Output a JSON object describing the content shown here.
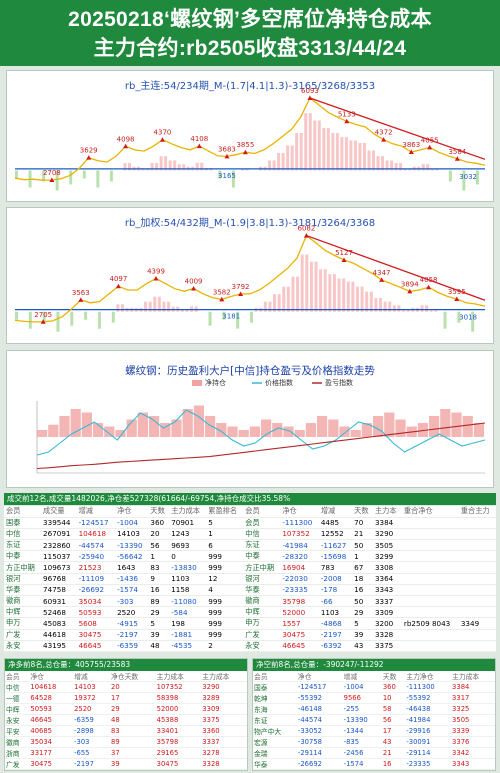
{
  "header": {
    "line1": "20250218‘螺纹钢’多空席位净持仓成本",
    "line2": "主力合约:rb2505收盘3313/44/24"
  },
  "chart_data": [
    {
      "type": "line",
      "title": "rb_主连:54/234期_M-(1.7|4.1|1.3)-3165/3268/3353",
      "colors": {
        "price": "#e8b400",
        "trend": "#d0191c",
        "hline": "#1a58c9",
        "bars_pos": "#f3a0a0",
        "bars_neg": "#9ad48a"
      },
      "price": [
        2780,
        2720,
        2740,
        2700,
        2708,
        2760,
        2900,
        3200,
        3629,
        3500,
        3450,
        3700,
        4098,
        3950,
        3900,
        4100,
        4370,
        4200,
        4050,
        3950,
        4108,
        3900,
        3700,
        3683,
        3750,
        3855,
        3800,
        3950,
        4200,
        4500,
        4800,
        5300,
        6093,
        5800,
        5500,
        5300,
        5133,
        5000,
        4900,
        4600,
        4372,
        4200,
        4100,
        3863,
        3950,
        4055,
        3850,
        3700,
        3584,
        3450,
        3400,
        3313
      ],
      "labels": [
        {
          "i": 4,
          "v": "2708"
        },
        {
          "i": 8,
          "v": "3629"
        },
        {
          "i": 12,
          "v": "4098"
        },
        {
          "i": 16,
          "v": "4370"
        },
        {
          "i": 20,
          "v": "4108"
        },
        {
          "i": 23,
          "v": "3683"
        },
        {
          "i": 25,
          "v": "3855"
        },
        {
          "i": 32,
          "v": "6093"
        },
        {
          "i": 36,
          "v": "5133"
        },
        {
          "i": 40,
          "v": "4372"
        },
        {
          "i": 43,
          "v": "3863"
        },
        {
          "i": 45,
          "v": "4055"
        },
        {
          "i": 48,
          "v": "3584"
        }
      ],
      "trend": {
        "from": 32,
        "to": 51
      },
      "hline": {
        "value": 3165,
        "label": "3165",
        "end_label": "3032"
      }
    },
    {
      "type": "line",
      "title": "rb_加权:54/432期_M-(1.9|3.8|1.3)-3181/3264/3368",
      "colors": {
        "price": "#e8b400",
        "trend": "#d0191c",
        "hline": "#1a58c9",
        "bars_pos": "#f3a0a0",
        "bars_neg": "#9ad48a"
      },
      "price": [
        2760,
        2720,
        2700,
        2705,
        2740,
        2900,
        3200,
        3563,
        3450,
        3500,
        3800,
        4097,
        3950,
        3950,
        4200,
        4399,
        4200,
        4000,
        3900,
        4009,
        3800,
        3650,
        3582,
        3700,
        3792,
        3800,
        3950,
        4200,
        4500,
        4800,
        5200,
        6082,
        5800,
        5500,
        5300,
        5127,
        5000,
        4800,
        4600,
        4347,
        4200,
        4050,
        3894,
        3950,
        4058,
        3850,
        3700,
        3595,
        3450,
        3400,
        3313
      ],
      "labels": [
        {
          "i": 3,
          "v": "2705"
        },
        {
          "i": 7,
          "v": "3563"
        },
        {
          "i": 11,
          "v": "4097"
        },
        {
          "i": 15,
          "v": "4399"
        },
        {
          "i": 19,
          "v": "4009"
        },
        {
          "i": 22,
          "v": "3582"
        },
        {
          "i": 24,
          "v": "3792"
        },
        {
          "i": 31,
          "v": "6082"
        },
        {
          "i": 35,
          "v": "5127"
        },
        {
          "i": 39,
          "v": "4347"
        },
        {
          "i": 42,
          "v": "3894"
        },
        {
          "i": 44,
          "v": "4058"
        },
        {
          "i": 47,
          "v": "3595"
        }
      ],
      "trend": {
        "from": 31,
        "to": 50
      },
      "hline": {
        "value": 3181,
        "label": "3181",
        "end_label": "3018"
      }
    },
    {
      "type": "line",
      "title": "螺纹钢：历史盈利大户[中信]持仓盈亏及价格指数走势",
      "legend": [
        "净持仓",
        "价格指数",
        "盈亏指数"
      ],
      "colors": {
        "net": "#f1a3a3",
        "price": "#36b8d6",
        "pnl": "#b02a2a"
      },
      "net": [
        20,
        35,
        60,
        80,
        70,
        40,
        30,
        20,
        50,
        70,
        60,
        40,
        50,
        80,
        90,
        60,
        40,
        30,
        20,
        30,
        50,
        40,
        30,
        20,
        40,
        60,
        50,
        30,
        20,
        40,
        60,
        70,
        50,
        30,
        40,
        60,
        80,
        70,
        60,
        40
      ],
      "price": [
        -60,
        -50,
        -20,
        10,
        30,
        50,
        20,
        -10,
        40,
        80,
        60,
        30,
        50,
        90,
        70,
        40,
        20,
        -10,
        -30,
        -20,
        10,
        30,
        20,
        -10,
        -40,
        -30,
        -10,
        20,
        50,
        40,
        20,
        -20,
        -50,
        -30,
        -10,
        10,
        -10,
        -30,
        -20,
        -10
      ],
      "pnl": [
        -90,
        -88,
        -85,
        -82,
        -80,
        -78,
        -75,
        -72,
        -70,
        -68,
        -66,
        -64,
        -62,
        -60,
        -58,
        -56,
        -52,
        -48,
        -44,
        -40,
        -36,
        -32,
        -28,
        -24,
        -20,
        -16,
        -12,
        -8,
        -4,
        0,
        4,
        8,
        12,
        16,
        20,
        24,
        28,
        32,
        36,
        40
      ]
    }
  ],
  "summary": "成交前12名,成交量1482026,净仓差527328(61664/-69754,净持仓成交比35.58%",
  "trade_table": {
    "headers": [
      "会员",
      "成交量",
      "增减",
      "净仓",
      "天数",
      "主力成本",
      "累盈排名",
      "会员",
      "净仓",
      "增减",
      "天数",
      "主力本",
      "重合净仓",
      "重合主力"
    ],
    "rows": [
      [
        "国泰",
        "339544",
        "-124517",
        "-1004",
        "360",
        "70901",
        "5",
        "会员",
        "-111300",
        "4485",
        "70",
        "3384",
        "",
        ""
      ],
      [
        "中信",
        "267091",
        "104618",
        "14103",
        "20",
        "1243",
        "1",
        "中信",
        "107352",
        "12552",
        "21",
        "3290",
        "",
        ""
      ],
      [
        "东证",
        "232860",
        "-44574",
        "-13390",
        "56",
        "9693",
        "6",
        "东证",
        "-41984",
        "-11627",
        "50",
        "3505",
        "",
        ""
      ],
      [
        "中泰",
        "115037",
        "-25940",
        "-56642",
        "1",
        "0",
        "999",
        "中泰",
        "-28320",
        "-15698",
        "1",
        "3299",
        "",
        ""
      ],
      [
        "方正中期",
        "109673",
        "21523",
        "1643",
        "83",
        "-13830",
        "999",
        "方正中期",
        "16904",
        "783",
        "67",
        "3308",
        "",
        ""
      ],
      [
        "银河",
        "96768",
        "-11109",
        "-1436",
        "9",
        "1103",
        "12",
        "银河",
        "-22030",
        "-2008",
        "18",
        "3364",
        "",
        ""
      ],
      [
        "华泰",
        "74758",
        "-26692",
        "-1574",
        "16",
        "1158",
        "4",
        "华泰",
        "-23335",
        "-178",
        "16",
        "3343",
        "",
        ""
      ],
      [
        "徽商",
        "60931",
        "35034",
        "-303",
        "89",
        "-11080",
        "999",
        "徽商",
        "35798",
        "-66",
        "50",
        "3337",
        "",
        ""
      ],
      [
        "中辉",
        "52468",
        "50593",
        "2520",
        "29",
        "-584",
        "999",
        "中辉",
        "52000",
        "1103",
        "29",
        "3309",
        "",
        ""
      ],
      [
        "申万",
        "45083",
        "5608",
        "-4915",
        "5",
        "198",
        "999",
        "申万",
        "1557",
        "-4868",
        "5",
        "3200",
        "8043",
        "3349"
      ],
      [
        "广发",
        "44618",
        "30475",
        "-2197",
        "39",
        "-1881",
        "999",
        "广发",
        "30475",
        "-2197",
        "39",
        "3328",
        "",
        ""
      ],
      [
        "永安",
        "43195",
        "46645",
        "-6359",
        "48",
        "-4535",
        "2",
        "永安",
        "46645",
        "-6392",
        "43",
        "3375",
        "",
        ""
      ]
    ],
    "link": "rb2509"
  },
  "long_box": {
    "title": "净多前8名,总仓量：405755/23583",
    "headers": [
      "会员",
      "净仓",
      "增减",
      "净仓天数",
      "主力成本",
      "主力成本"
    ],
    "rows": [
      [
        "中信",
        "104618",
        "14103",
        "20",
        "107352",
        "3290"
      ],
      [
        "一德",
        "64528",
        "19372",
        "17",
        "58398",
        "3289"
      ],
      [
        "中辉",
        "50593",
        "2520",
        "29",
        "52000",
        "3309"
      ],
      [
        "永安",
        "46645",
        "-6359",
        "48",
        "45388",
        "3375"
      ],
      [
        "平安",
        "40685",
        "-2898",
        "83",
        "33401",
        "3360"
      ],
      [
        "徽商",
        "35034",
        "-303",
        "89",
        "35798",
        "3337"
      ],
      [
        "浙商",
        "33177",
        "-655",
        "37",
        "29165",
        "3278"
      ],
      [
        "广发",
        "30475",
        "-2197",
        "39",
        "30475",
        "3328"
      ]
    ]
  },
  "short_box": {
    "title": "净空前8名,总仓量：-390247/-11292",
    "headers": [
      "会员",
      "净仓",
      "增减",
      "天数",
      "主力净仓",
      "主力成本"
    ],
    "rows": [
      [
        "国泰",
        "-124517",
        "-1004",
        "360",
        "-111300",
        "3384"
      ],
      [
        "乾坤",
        "-55392",
        "9566",
        "10",
        "-55392",
        "3317"
      ],
      [
        "东海",
        "-46148",
        "-255",
        "58",
        "-46438",
        "3325"
      ],
      [
        "东证",
        "-44574",
        "-13390",
        "56",
        "-41984",
        "3505"
      ],
      [
        "物产中大",
        "-33052",
        "-1344",
        "17",
        "-29916",
        "3339"
      ],
      [
        "宏源",
        "-30758",
        "-835",
        "43",
        "-30091",
        "3376"
      ],
      [
        "金瑞",
        "-29114",
        "-2456",
        "21",
        "-29114",
        "3342"
      ],
      [
        "华泰",
        "-26692",
        "-1574",
        "16",
        "-23335",
        "3343"
      ]
    ]
  }
}
